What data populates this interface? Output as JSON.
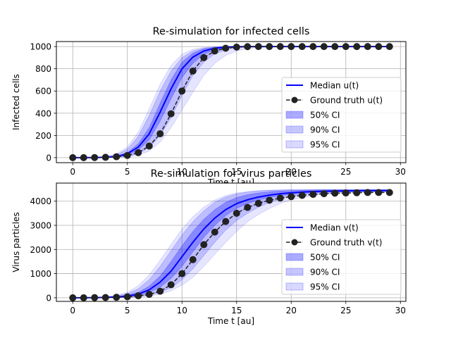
{
  "chart_data": [
    {
      "type": "line",
      "title": "Re-simulation for infected cells",
      "xlabel": "Time t [au]",
      "ylabel": "Infected cells",
      "xlim": [
        -1.5,
        30.5
      ],
      "ylim": [
        -45,
        1045
      ],
      "xticks": [
        0,
        5,
        10,
        15,
        20,
        25,
        30
      ],
      "yticks": [
        0,
        200,
        400,
        600,
        800,
        1000
      ],
      "grid": true,
      "legend_position": "lower right",
      "x": [
        0,
        1,
        2,
        3,
        4,
        5,
        6,
        7,
        8,
        9,
        10,
        11,
        12,
        13,
        14,
        15,
        16,
        17,
        18,
        19,
        20,
        21,
        22,
        23,
        24,
        25,
        26,
        27,
        28,
        29
      ],
      "series": [
        {
          "name": "Median u(t)",
          "kind": "line",
          "color": "#0000ff",
          "values": [
            0,
            0,
            1,
            3,
            10,
            35,
            95,
            215,
            410,
            620,
            800,
            905,
            960,
            985,
            995,
            998,
            1000,
            1000,
            1000,
            1000,
            1000,
            1000,
            1000,
            1000,
            1000,
            1000,
            1000,
            1000,
            1000,
            1000
          ]
        },
        {
          "name": "Ground truth u(t)",
          "kind": "line-markers",
          "color": "#222222",
          "values": [
            0,
            0,
            1,
            3,
            8,
            20,
            45,
            105,
            215,
            395,
            600,
            780,
            900,
            960,
            985,
            995,
            999,
            1000,
            1000,
            1000,
            1000,
            1000,
            1000,
            1000,
            1000,
            1000,
            1000,
            1000,
            1000,
            1000
          ]
        },
        {
          "name": "50% CI",
          "kind": "band",
          "color": "#0000ff",
          "opacity": 0.28,
          "lower": [
            0,
            0,
            0,
            2,
            7,
            25,
            70,
            160,
            330,
            530,
            720,
            850,
            930,
            970,
            988,
            996,
            999,
            1000,
            1000,
            1000,
            1000,
            1000,
            1000,
            1000,
            1000,
            1000,
            1000,
            1000,
            1000,
            1000
          ],
          "upper": [
            0,
            0,
            2,
            5,
            14,
            45,
            125,
            270,
            490,
            700,
            860,
            940,
            980,
            993,
            998,
            1000,
            1000,
            1000,
            1000,
            1000,
            1000,
            1000,
            1000,
            1000,
            1000,
            1000,
            1000,
            1000,
            1000,
            1000
          ]
        },
        {
          "name": "90% CI",
          "kind": "band",
          "color": "#0000ff",
          "opacity": 0.17,
          "lower": [
            0,
            0,
            0,
            1,
            3,
            12,
            35,
            90,
            200,
            360,
            560,
            740,
            860,
            935,
            970,
            988,
            996,
            999,
            1000,
            1000,
            1000,
            1000,
            1000,
            1000,
            1000,
            1000,
            1000,
            1000,
            1000,
            1000
          ],
          "upper": [
            0,
            1,
            3,
            8,
            25,
            75,
            190,
            380,
            600,
            780,
            900,
            960,
            985,
            995,
            999,
            1000,
            1000,
            1000,
            1000,
            1000,
            1000,
            1000,
            1000,
            1000,
            1000,
            1000,
            1000,
            1000,
            1000,
            1000
          ]
        },
        {
          "name": "95% CI",
          "kind": "band",
          "color": "#0000ff",
          "opacity": 0.1,
          "lower": [
            0,
            0,
            0,
            0,
            2,
            8,
            22,
            60,
            140,
            270,
            430,
            590,
            740,
            850,
            920,
            960,
            982,
            993,
            998,
            1000,
            1000,
            1000,
            1000,
            1000,
            1000,
            1000,
            1000,
            1000,
            1000,
            1000
          ],
          "upper": [
            0,
            1,
            4,
            12,
            35,
            95,
            230,
            440,
            660,
            830,
            930,
            975,
            992,
            998,
            1000,
            1000,
            1000,
            1000,
            1000,
            1000,
            1000,
            1000,
            1000,
            1000,
            1000,
            1000,
            1000,
            1000,
            1000,
            1000
          ]
        }
      ]
    },
    {
      "type": "line",
      "title": "Re-simulation for virus particles",
      "xlabel": "Time t [au]",
      "ylabel": "Virus particles",
      "xlim": [
        -1.5,
        30.5
      ],
      "ylim": [
        -150,
        4750
      ],
      "xticks": [
        0,
        5,
        10,
        15,
        20,
        25,
        30
      ],
      "yticks": [
        0,
        1000,
        2000,
        3000,
        4000
      ],
      "grid": true,
      "legend_position": "lower right",
      "x": [
        0,
        1,
        2,
        3,
        4,
        5,
        6,
        7,
        8,
        9,
        10,
        11,
        12,
        13,
        14,
        15,
        16,
        17,
        18,
        19,
        20,
        21,
        22,
        23,
        24,
        25,
        26,
        27,
        28,
        29
      ],
      "series": [
        {
          "name": "Median v(t)",
          "kind": "line",
          "color": "#0000ff",
          "values": [
            0,
            0,
            5,
            15,
            30,
            70,
            150,
            330,
            650,
            1100,
            1700,
            2300,
            2850,
            3300,
            3650,
            3900,
            4060,
            4170,
            4250,
            4310,
            4350,
            4380,
            4400,
            4410,
            4420,
            4430,
            4430,
            4440,
            4440,
            4440
          ]
        },
        {
          "name": "Ground truth v(t)",
          "kind": "line-markers",
          "color": "#222222",
          "values": [
            0,
            0,
            5,
            10,
            20,
            40,
            80,
            140,
            270,
            540,
            1000,
            1580,
            2200,
            2720,
            3160,
            3500,
            3740,
            3910,
            4040,
            4130,
            4190,
            4240,
            4280,
            4310,
            4330,
            4340,
            4350,
            4360,
            4360,
            4360
          ]
        },
        {
          "name": "50% CI",
          "kind": "band",
          "color": "#0000ff",
          "opacity": 0.28,
          "lower": [
            0,
            0,
            0,
            5,
            15,
            40,
            100,
            220,
            440,
            800,
            1300,
            1900,
            2500,
            3000,
            3400,
            3700,
            3900,
            4050,
            4150,
            4230,
            4280,
            4320,
            4350,
            4370,
            4380,
            4390,
            4400,
            4400,
            4400,
            4400
          ],
          "upper": [
            0,
            0,
            10,
            25,
            50,
            110,
            230,
            480,
            900,
            1500,
            2150,
            2750,
            3250,
            3650,
            3950,
            4150,
            4270,
            4340,
            4390,
            4420,
            4440,
            4450,
            4460,
            4470,
            4470,
            4470,
            4470,
            4470,
            4470,
            4470
          ]
        },
        {
          "name": "90% CI",
          "kind": "band",
          "color": "#0000ff",
          "opacity": 0.17,
          "lower": [
            0,
            0,
            0,
            0,
            8,
            20,
            50,
            110,
            220,
            420,
            750,
            1200,
            1750,
            2300,
            2800,
            3200,
            3500,
            3750,
            3950,
            4090,
            4200,
            4270,
            4320,
            4350,
            4370,
            4380,
            4390,
            4400,
            4400,
            4400
          ],
          "upper": [
            0,
            5,
            15,
            35,
            75,
            170,
            370,
            750,
            1300,
            1950,
            2600,
            3150,
            3600,
            3950,
            4170,
            4300,
            4380,
            4420,
            4450,
            4460,
            4470,
            4480,
            4480,
            4480,
            4480,
            4480,
            4480,
            4480,
            4480,
            4480
          ]
        },
        {
          "name": "95% CI",
          "kind": "band",
          "color": "#0000ff",
          "opacity": 0.1,
          "lower": [
            0,
            0,
            0,
            0,
            5,
            12,
            30,
            70,
            150,
            290,
            520,
            850,
            1300,
            1800,
            2300,
            2750,
            3150,
            3450,
            3700,
            3900,
            4050,
            4150,
            4230,
            4280,
            4320,
            4350,
            4370,
            4380,
            4390,
            4400
          ],
          "upper": [
            0,
            8,
            20,
            45,
            100,
            230,
            500,
            950,
            1550,
            2200,
            2850,
            3350,
            3750,
            4050,
            4230,
            4340,
            4400,
            4440,
            4460,
            4470,
            4480,
            4480,
            4480,
            4480,
            4480,
            4480,
            4480,
            4480,
            4480,
            4480
          ]
        }
      ]
    }
  ]
}
